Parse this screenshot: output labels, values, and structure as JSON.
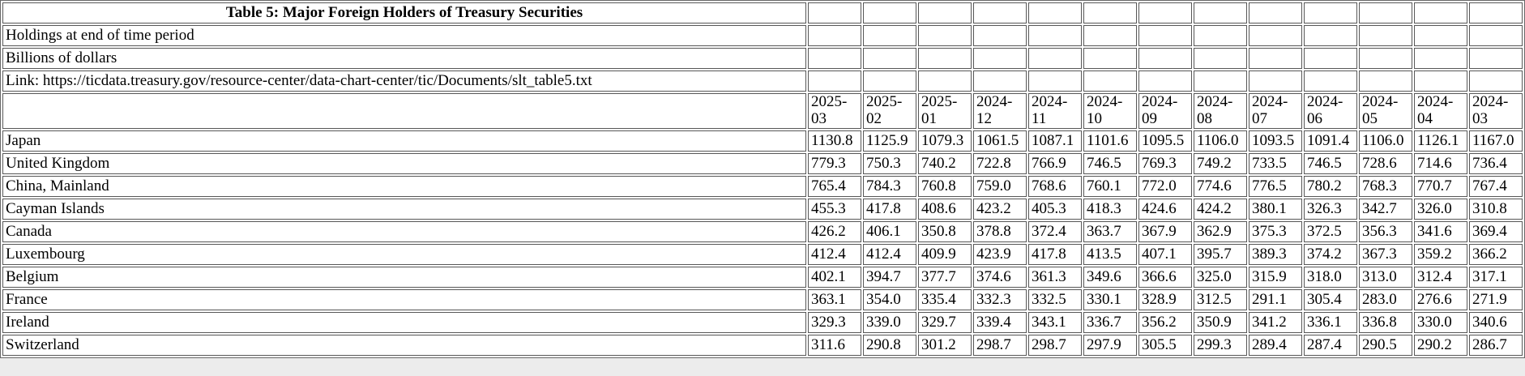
{
  "table": {
    "title": "Table 5: Major Foreign Holders of Treasury Securities",
    "subtitle_rows": [
      "Holdings at end of time period",
      "Billions of dollars",
      "Link: https://ticdata.treasury.gov/resource-center/data-chart-center/tic/Documents/slt_table5.txt"
    ],
    "columns": [
      "2025-03",
      "2025-02",
      "2025-01",
      "2024-12",
      "2024-11",
      "2024-10",
      "2024-09",
      "2024-08",
      "2024-07",
      "2024-06",
      "2024-05",
      "2024-04",
      "2024-03"
    ],
    "rows": [
      {
        "label": "Japan",
        "values": [
          "1130.8",
          "1125.9",
          "1079.3",
          "1061.5",
          "1087.1",
          "1101.6",
          "1095.5",
          "1106.0",
          "1093.5",
          "1091.4",
          "1106.0",
          "1126.1",
          "1167.0"
        ]
      },
      {
        "label": "United Kingdom",
        "values": [
          "779.3",
          "750.3",
          "740.2",
          "722.8",
          "766.9",
          "746.5",
          "769.3",
          "749.2",
          "733.5",
          "746.5",
          "728.6",
          "714.6",
          "736.4"
        ]
      },
      {
        "label": "China, Mainland",
        "values": [
          "765.4",
          "784.3",
          "760.8",
          "759.0",
          "768.6",
          "760.1",
          "772.0",
          "774.6",
          "776.5",
          "780.2",
          "768.3",
          "770.7",
          "767.4"
        ]
      },
      {
        "label": "Cayman Islands",
        "values": [
          "455.3",
          "417.8",
          "408.6",
          "423.2",
          "405.3",
          "418.3",
          "424.6",
          "424.2",
          "380.1",
          "326.3",
          "342.7",
          "326.0",
          "310.8"
        ]
      },
      {
        "label": "Canada",
        "values": [
          "426.2",
          "406.1",
          "350.8",
          "378.8",
          "372.4",
          "363.7",
          "367.9",
          "362.9",
          "375.3",
          "372.5",
          "356.3",
          "341.6",
          "369.4"
        ]
      },
      {
        "label": "Luxembourg",
        "values": [
          "412.4",
          "412.4",
          "409.9",
          "423.9",
          "417.8",
          "413.5",
          "407.1",
          "395.7",
          "389.3",
          "374.2",
          "367.3",
          "359.2",
          "366.2"
        ]
      },
      {
        "label": "Belgium",
        "values": [
          "402.1",
          "394.7",
          "377.7",
          "374.6",
          "361.3",
          "349.6",
          "366.6",
          "325.0",
          "315.9",
          "318.0",
          "313.0",
          "312.4",
          "317.1"
        ]
      },
      {
        "label": "France",
        "values": [
          "363.1",
          "354.0",
          "335.4",
          "332.3",
          "332.5",
          "330.1",
          "328.9",
          "312.5",
          "291.1",
          "305.4",
          "283.0",
          "276.6",
          "271.9"
        ]
      },
      {
        "label": "Ireland",
        "values": [
          "329.3",
          "339.0",
          "329.7",
          "339.4",
          "343.1",
          "336.7",
          "356.2",
          "350.9",
          "341.2",
          "336.1",
          "336.8",
          "330.0",
          "340.6"
        ]
      },
      {
        "label": "Switzerland",
        "values": [
          "311.6",
          "290.8",
          "301.2",
          "298.7",
          "298.7",
          "297.9",
          "305.5",
          "299.3",
          "289.4",
          "287.4",
          "290.5",
          "290.2",
          "286.7"
        ]
      }
    ]
  },
  "chart_data": {
    "type": "table",
    "title": "Table 5: Major Foreign Holders of Treasury Securities",
    "subtitle": "Holdings at end of time period, Billions of dollars",
    "source_link": "https://ticdata.treasury.gov/resource-center/data-chart-center/tic/Documents/slt_table5.txt",
    "categories": [
      "2025-03",
      "2025-02",
      "2025-01",
      "2024-12",
      "2024-11",
      "2024-10",
      "2024-09",
      "2024-08",
      "2024-07",
      "2024-06",
      "2024-05",
      "2024-04",
      "2024-03"
    ],
    "series": [
      {
        "name": "Japan",
        "values": [
          1130.8,
          1125.9,
          1079.3,
          1061.5,
          1087.1,
          1101.6,
          1095.5,
          1106.0,
          1093.5,
          1091.4,
          1106.0,
          1126.1,
          1167.0
        ]
      },
      {
        "name": "United Kingdom",
        "values": [
          779.3,
          750.3,
          740.2,
          722.8,
          766.9,
          746.5,
          769.3,
          749.2,
          733.5,
          746.5,
          728.6,
          714.6,
          736.4
        ]
      },
      {
        "name": "China, Mainland",
        "values": [
          765.4,
          784.3,
          760.8,
          759.0,
          768.6,
          760.1,
          772.0,
          774.6,
          776.5,
          780.2,
          768.3,
          770.7,
          767.4
        ]
      },
      {
        "name": "Cayman Islands",
        "values": [
          455.3,
          417.8,
          408.6,
          423.2,
          405.3,
          418.3,
          424.6,
          424.2,
          380.1,
          326.3,
          342.7,
          326.0,
          310.8
        ]
      },
      {
        "name": "Canada",
        "values": [
          426.2,
          406.1,
          350.8,
          378.8,
          372.4,
          363.7,
          367.9,
          362.9,
          375.3,
          372.5,
          356.3,
          341.6,
          369.4
        ]
      },
      {
        "name": "Luxembourg",
        "values": [
          412.4,
          412.4,
          409.9,
          423.9,
          417.8,
          413.5,
          407.1,
          395.7,
          389.3,
          374.2,
          367.3,
          359.2,
          366.2
        ]
      },
      {
        "name": "Belgium",
        "values": [
          402.1,
          394.7,
          377.7,
          374.6,
          361.3,
          349.6,
          366.6,
          325.0,
          315.9,
          318.0,
          313.0,
          312.4,
          317.1
        ]
      },
      {
        "name": "France",
        "values": [
          363.1,
          354.0,
          335.4,
          332.3,
          332.5,
          330.1,
          328.9,
          312.5,
          291.1,
          305.4,
          283.0,
          276.6,
          271.9
        ]
      },
      {
        "name": "Ireland",
        "values": [
          329.3,
          339.0,
          329.7,
          339.4,
          343.1,
          336.7,
          356.2,
          350.9,
          341.2,
          336.1,
          336.8,
          330.0,
          340.6
        ]
      },
      {
        "name": "Switzerland",
        "values": [
          311.6,
          290.8,
          301.2,
          298.7,
          298.7,
          297.9,
          305.5,
          299.3,
          289.4,
          287.4,
          290.5,
          290.2,
          286.7
        ]
      }
    ]
  },
  "colors": {
    "text": "#000000",
    "cell_border": "#575757",
    "table_background": "#ffffff",
    "page_background": "#ececec"
  }
}
